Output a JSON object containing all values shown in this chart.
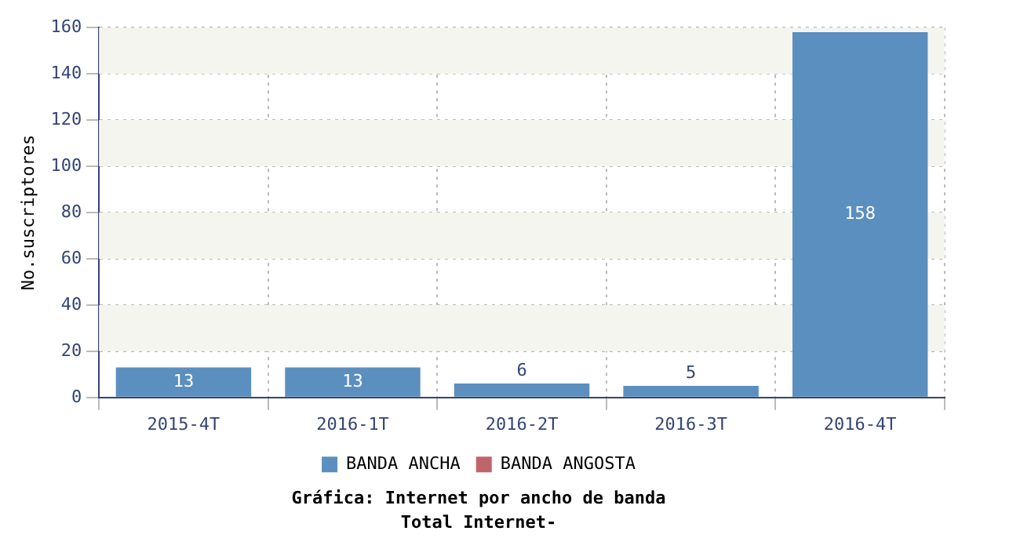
{
  "chart_data": {
    "type": "bar",
    "title": "Gráfica: Internet por ancho de banda",
    "subtitle": "Total Internet-",
    "ylabel": "No.suscriptores",
    "categories": [
      "2015-4T",
      "2016-1T",
      "2016-2T",
      "2016-3T",
      "2016-4T"
    ],
    "series": [
      {
        "name": "BANDA ANCHA",
        "color": "#5b8fbf",
        "values": [
          13,
          13,
          6,
          5,
          158
        ],
        "value_labels": [
          "13",
          "13",
          "6",
          "5",
          "158"
        ]
      },
      {
        "name": "BANDA ANGOSTA",
        "color": "#c0646c",
        "values": [
          0,
          0,
          0,
          0,
          0
        ]
      }
    ],
    "stacked": true,
    "ylim": [
      0,
      160
    ],
    "yticks": [
      0,
      20,
      40,
      60,
      80,
      100,
      120,
      140,
      160
    ],
    "grid": true,
    "legend": "bottom"
  }
}
